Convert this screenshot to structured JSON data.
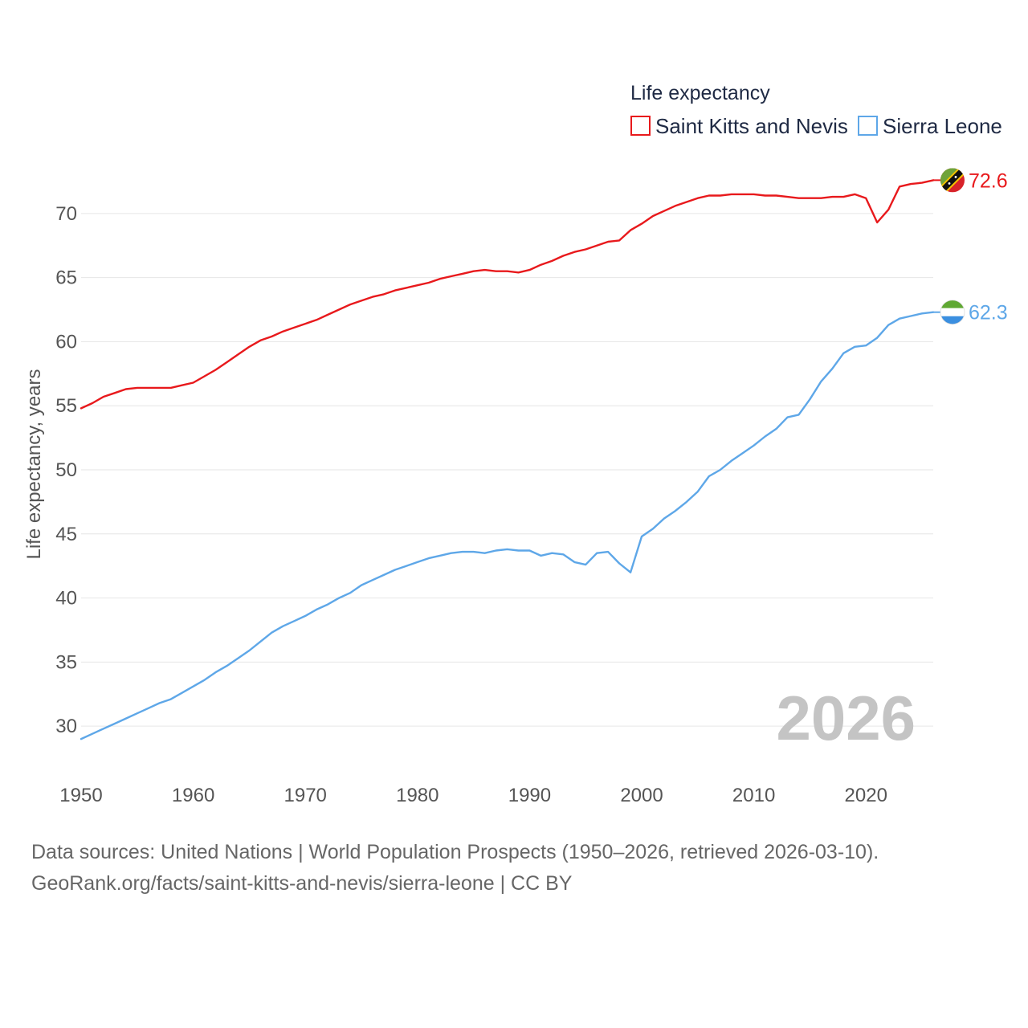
{
  "chart_data": {
    "type": "line",
    "legend_title": "Life expectancy",
    "ylabel": "Life expectancy, years",
    "xlabel": "",
    "xlim": [
      1950,
      2026
    ],
    "ylim": [
      26.5,
      73.5
    ],
    "x_ticks": [
      1950,
      1960,
      1970,
      1980,
      1990,
      2000,
      2010,
      2020
    ],
    "y_ticks": [
      30,
      35,
      40,
      45,
      50,
      55,
      60,
      65,
      70
    ],
    "grid": true,
    "legend_position": "top-right",
    "year_label": "2026",
    "series": [
      {
        "name": "Saint Kitts and Nevis",
        "color": "#e8191c",
        "end_label": "72.6",
        "flag_icon": "saint-kitts-and-nevis-flag-icon",
        "x": [
          1950,
          1951,
          1952,
          1953,
          1954,
          1955,
          1956,
          1957,
          1958,
          1959,
          1960,
          1961,
          1962,
          1963,
          1964,
          1965,
          1966,
          1967,
          1968,
          1969,
          1970,
          1971,
          1972,
          1973,
          1974,
          1975,
          1976,
          1977,
          1978,
          1979,
          1980,
          1981,
          1982,
          1983,
          1984,
          1985,
          1986,
          1987,
          1988,
          1989,
          1990,
          1991,
          1992,
          1993,
          1994,
          1995,
          1996,
          1997,
          1998,
          1999,
          2000,
          2001,
          2002,
          2003,
          2004,
          2005,
          2006,
          2007,
          2008,
          2009,
          2010,
          2011,
          2012,
          2013,
          2014,
          2015,
          2016,
          2017,
          2018,
          2019,
          2020,
          2021,
          2022,
          2023,
          2024,
          2025,
          2026
        ],
        "values": [
          54.8,
          55.2,
          55.7,
          56.0,
          56.3,
          56.4,
          56.4,
          56.4,
          56.4,
          56.6,
          56.8,
          57.3,
          57.8,
          58.4,
          59.0,
          59.6,
          60.1,
          60.4,
          60.8,
          61.1,
          61.4,
          61.7,
          62.1,
          62.5,
          62.9,
          63.2,
          63.5,
          63.7,
          64.0,
          64.2,
          64.4,
          64.6,
          64.9,
          65.1,
          65.3,
          65.5,
          65.6,
          65.5,
          65.5,
          65.4,
          65.6,
          66.0,
          66.3,
          66.7,
          67.0,
          67.2,
          67.5,
          67.8,
          67.9,
          68.7,
          69.2,
          69.8,
          70.2,
          70.6,
          70.9,
          71.2,
          71.4,
          71.4,
          71.5,
          71.5,
          71.5,
          71.4,
          71.4,
          71.3,
          71.2,
          71.2,
          71.2,
          71.3,
          71.3,
          71.5,
          71.2,
          69.3,
          70.3,
          72.1,
          72.3,
          72.4,
          72.6
        ]
      },
      {
        "name": "Sierra Leone",
        "color": "#5ea7e8",
        "end_label": "62.3",
        "flag_icon": "sierra-leone-flag-icon",
        "x": [
          1950,
          1951,
          1952,
          1953,
          1954,
          1955,
          1956,
          1957,
          1958,
          1959,
          1960,
          1961,
          1962,
          1963,
          1964,
          1965,
          1966,
          1967,
          1968,
          1969,
          1970,
          1971,
          1972,
          1973,
          1974,
          1975,
          1976,
          1977,
          1978,
          1979,
          1980,
          1981,
          1982,
          1983,
          1984,
          1985,
          1986,
          1987,
          1988,
          1989,
          1990,
          1991,
          1992,
          1993,
          1994,
          1995,
          1996,
          1997,
          1998,
          1999,
          2000,
          2001,
          2002,
          2003,
          2004,
          2005,
          2006,
          2007,
          2008,
          2009,
          2010,
          2011,
          2012,
          2013,
          2014,
          2015,
          2016,
          2017,
          2018,
          2019,
          2020,
          2021,
          2022,
          2023,
          2024,
          2025,
          2026
        ],
        "values": [
          29.0,
          29.4,
          29.8,
          30.2,
          30.6,
          31.0,
          31.4,
          31.8,
          32.1,
          32.6,
          33.1,
          33.6,
          34.2,
          34.7,
          35.3,
          35.9,
          36.6,
          37.3,
          37.8,
          38.2,
          38.6,
          39.1,
          39.5,
          40.0,
          40.4,
          41.0,
          41.4,
          41.8,
          42.2,
          42.5,
          42.8,
          43.1,
          43.3,
          43.5,
          43.6,
          43.6,
          43.5,
          43.7,
          43.8,
          43.7,
          43.7,
          43.3,
          43.5,
          43.4,
          42.8,
          42.6,
          43.5,
          43.6,
          42.7,
          42.0,
          44.8,
          45.4,
          46.2,
          46.8,
          47.5,
          48.3,
          49.5,
          50.0,
          50.7,
          51.3,
          51.9,
          52.6,
          53.2,
          54.1,
          54.3,
          55.5,
          56.9,
          57.9,
          59.1,
          59.6,
          59.7,
          60.3,
          61.3,
          61.8,
          62.0,
          62.2,
          62.3
        ]
      }
    ]
  },
  "footer": {
    "source_line": "Data sources: United Nations | World Population Prospects (1950–2026, retrieved 2026-03-10).",
    "url_line": "GeoRank.org/facts/saint-kitts-and-nevis/sierra-leone | CC BY"
  }
}
